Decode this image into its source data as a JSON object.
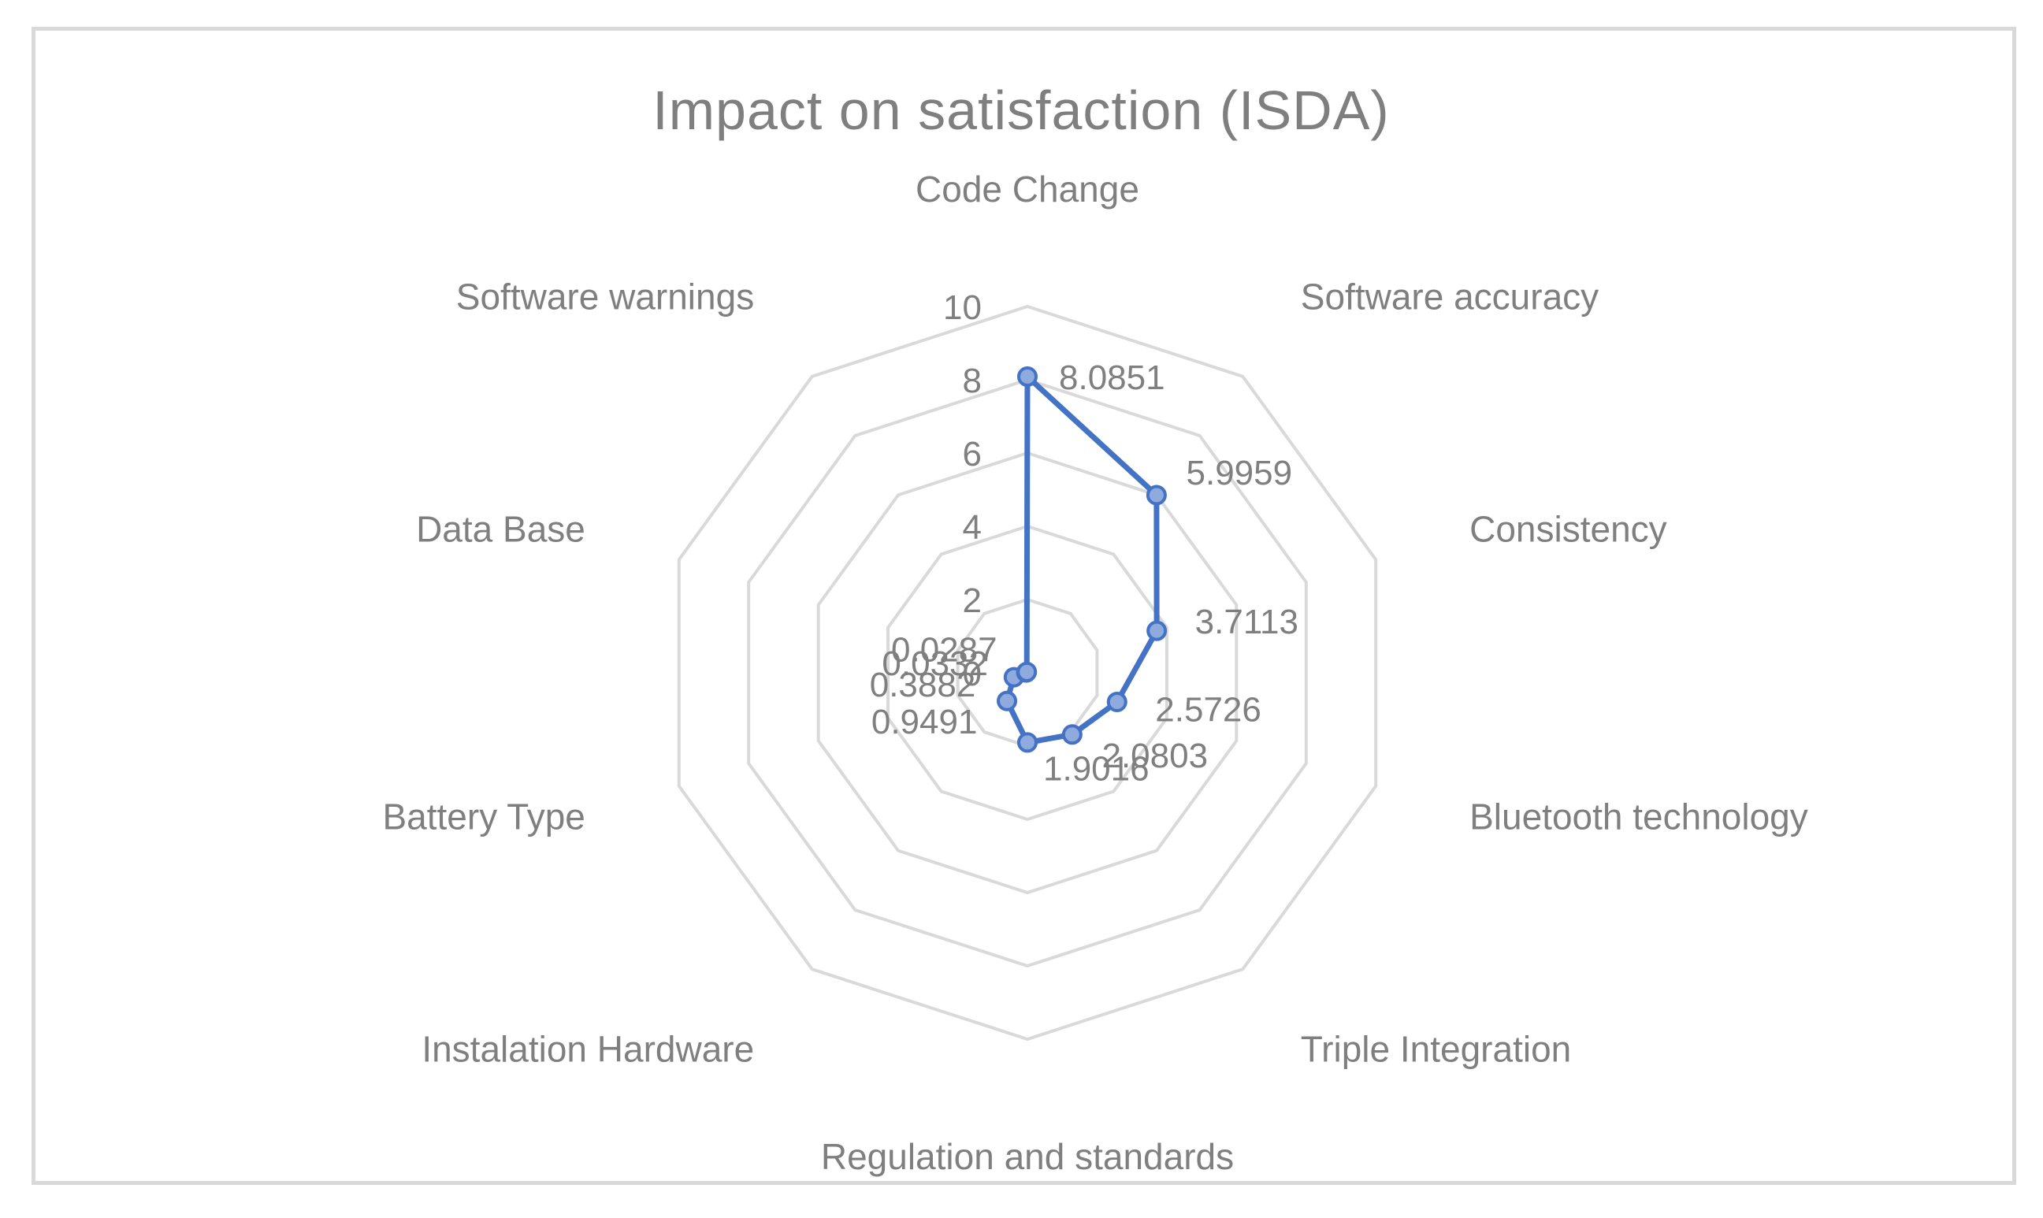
{
  "chart_data": {
    "type": "radar",
    "title": "Impact on satisfaction (ISDA)",
    "categories": [
      "Code Change",
      "Software accuracy",
      "Consistency",
      "Bluetooth technology",
      "Triple Integration",
      "Regulation and standards",
      "Instalation Hardware",
      "Battery Type",
      "Data Base",
      "Software warnings"
    ],
    "series": [
      {
        "name": "ISDA",
        "values": [
          8.0851,
          5.9959,
          3.7113,
          2.5726,
          2.0803,
          1.9016,
          0.9491,
          0.3882,
          0.0332,
          0.0287
        ],
        "labels": [
          "8.0851",
          "5.9959",
          "3.7113",
          "2.5726",
          "2.0803",
          "1.9016",
          "0.9491",
          "0.3882",
          "0.0332",
          "0.0287"
        ],
        "color": "#4472c4",
        "marker_fill": "#8faadc"
      }
    ],
    "radial_axis": {
      "min": 0,
      "max": 10,
      "step": 2,
      "ticks": [
        "0",
        "2",
        "4",
        "6",
        "8",
        "10"
      ]
    },
    "grid": true,
    "legend": "none"
  }
}
